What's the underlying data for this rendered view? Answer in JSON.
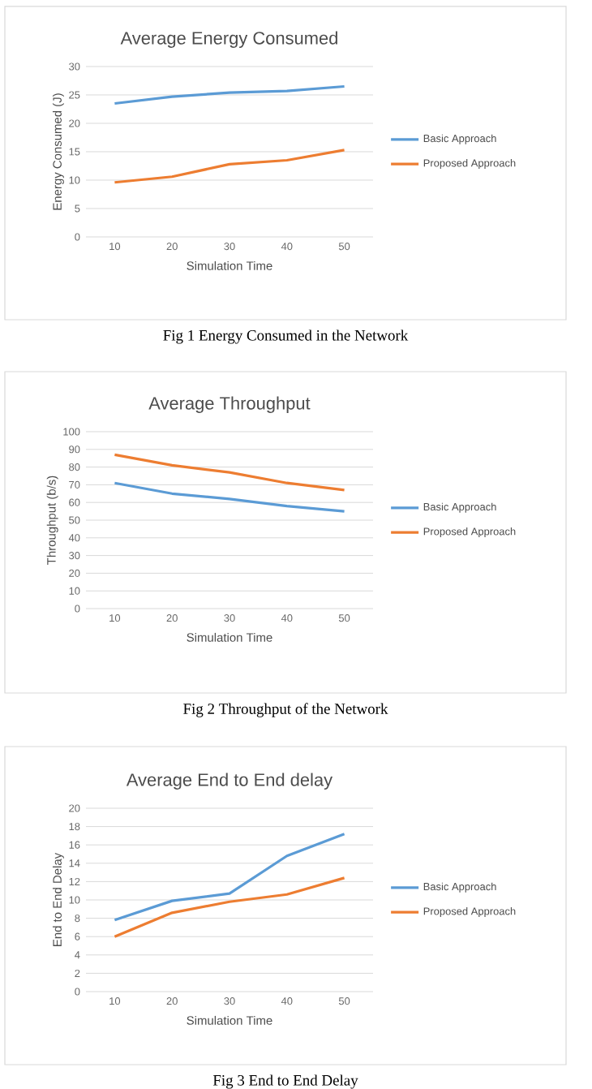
{
  "chart_data": [
    {
      "type": "line",
      "title": "Average Energy Consumed",
      "xlabel": "Simulation Time",
      "ylabel": "Energy Consumed (J)",
      "categories": [
        "10",
        "20",
        "30",
        "40",
        "50"
      ],
      "ylim": [
        0,
        30
      ],
      "yticks": [
        0,
        5,
        10,
        15,
        20,
        25,
        30
      ],
      "grid": "y",
      "legend": "right",
      "annotations": [
        "Fig 1 Energy Consumed in the Network"
      ],
      "series": [
        {
          "name": "Basic Approach",
          "color": "#5b9bd5",
          "values": [
            23.5,
            24.7,
            25.4,
            25.7,
            26.5
          ]
        },
        {
          "name": "Proposed Approach",
          "color": "#ed7d31",
          "values": [
            9.6,
            10.6,
            12.8,
            13.5,
            15.3
          ]
        }
      ]
    },
    {
      "type": "line",
      "title": "Average Throughput",
      "xlabel": "Simulation Time",
      "ylabel": "Throughput (b/s)",
      "categories": [
        "10",
        "20",
        "30",
        "40",
        "50"
      ],
      "ylim": [
        0,
        100
      ],
      "yticks": [
        0,
        10,
        20,
        30,
        40,
        50,
        60,
        70,
        80,
        90,
        100
      ],
      "grid": "y",
      "legend": "right",
      "annotations": [
        "Fig 2 Throughput of the Network"
      ],
      "series": [
        {
          "name": "Basic Approach",
          "color": "#5b9bd5",
          "values": [
            71,
            65,
            62,
            58,
            55
          ]
        },
        {
          "name": "Proposed Approach",
          "color": "#ed7d31",
          "values": [
            87,
            81,
            77,
            71,
            67
          ]
        }
      ]
    },
    {
      "type": "line",
      "title": "Average End to End delay",
      "xlabel": "Simulation Time",
      "ylabel": "End to End Delay",
      "categories": [
        "10",
        "20",
        "30",
        "40",
        "50"
      ],
      "ylim": [
        0,
        20
      ],
      "yticks": [
        0,
        2,
        4,
        6,
        8,
        10,
        12,
        14,
        16,
        18,
        20
      ],
      "grid": "y",
      "legend": "right",
      "annotations": [
        "Fig 3 End to End Delay"
      ],
      "series": [
        {
          "name": "Basic Approach",
          "color": "#5b9bd5",
          "values": [
            7.8,
            9.9,
            10.7,
            14.8,
            17.2
          ]
        },
        {
          "name": "Proposed Approach",
          "color": "#ed7d31",
          "values": [
            6,
            8.6,
            9.8,
            10.6,
            12.4
          ]
        }
      ]
    }
  ]
}
